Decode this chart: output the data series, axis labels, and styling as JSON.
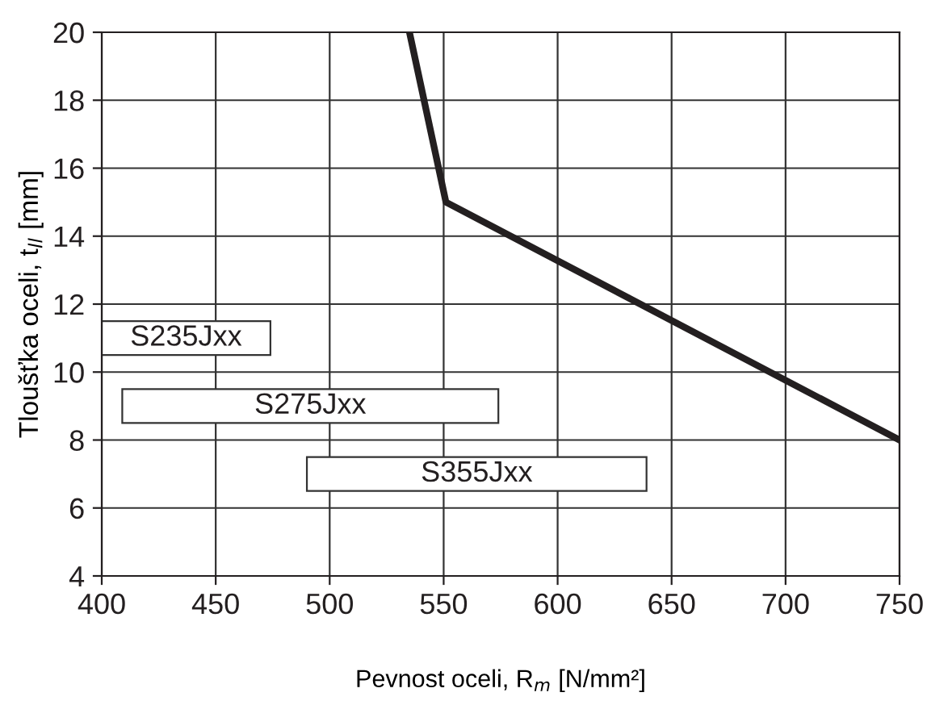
{
  "chart_data": {
    "type": "line",
    "xlabel": "Pevnost oceli, R$_{m}$ [N/mm²]",
    "ylabel": "Tloušťka oceli, t$_{ll}$ [mm]",
    "xlim": [
      400,
      750
    ],
    "xticks": [
      400,
      450,
      500,
      550,
      600,
      650,
      700,
      750
    ],
    "ylim": [
      4,
      20
    ],
    "yticks": [
      4,
      6,
      8,
      10,
      12,
      14,
      16,
      18,
      20
    ],
    "grid": true,
    "series": [
      {
        "color": "#231f20",
        "x": [
          535,
          551,
          750
        ],
        "values": [
          20,
          15,
          8
        ]
      }
    ],
    "bands": [
      {
        "axis": "x",
        "from": 400,
        "to": 474,
        "label": "S235Jxx"
      },
      {
        "axis": "x",
        "from": 409,
        "to": 574,
        "label": "S275Jxx"
      },
      {
        "axis": "x",
        "from": 490,
        "to": 639,
        "label": "S355Jxx"
      }
    ]
  }
}
